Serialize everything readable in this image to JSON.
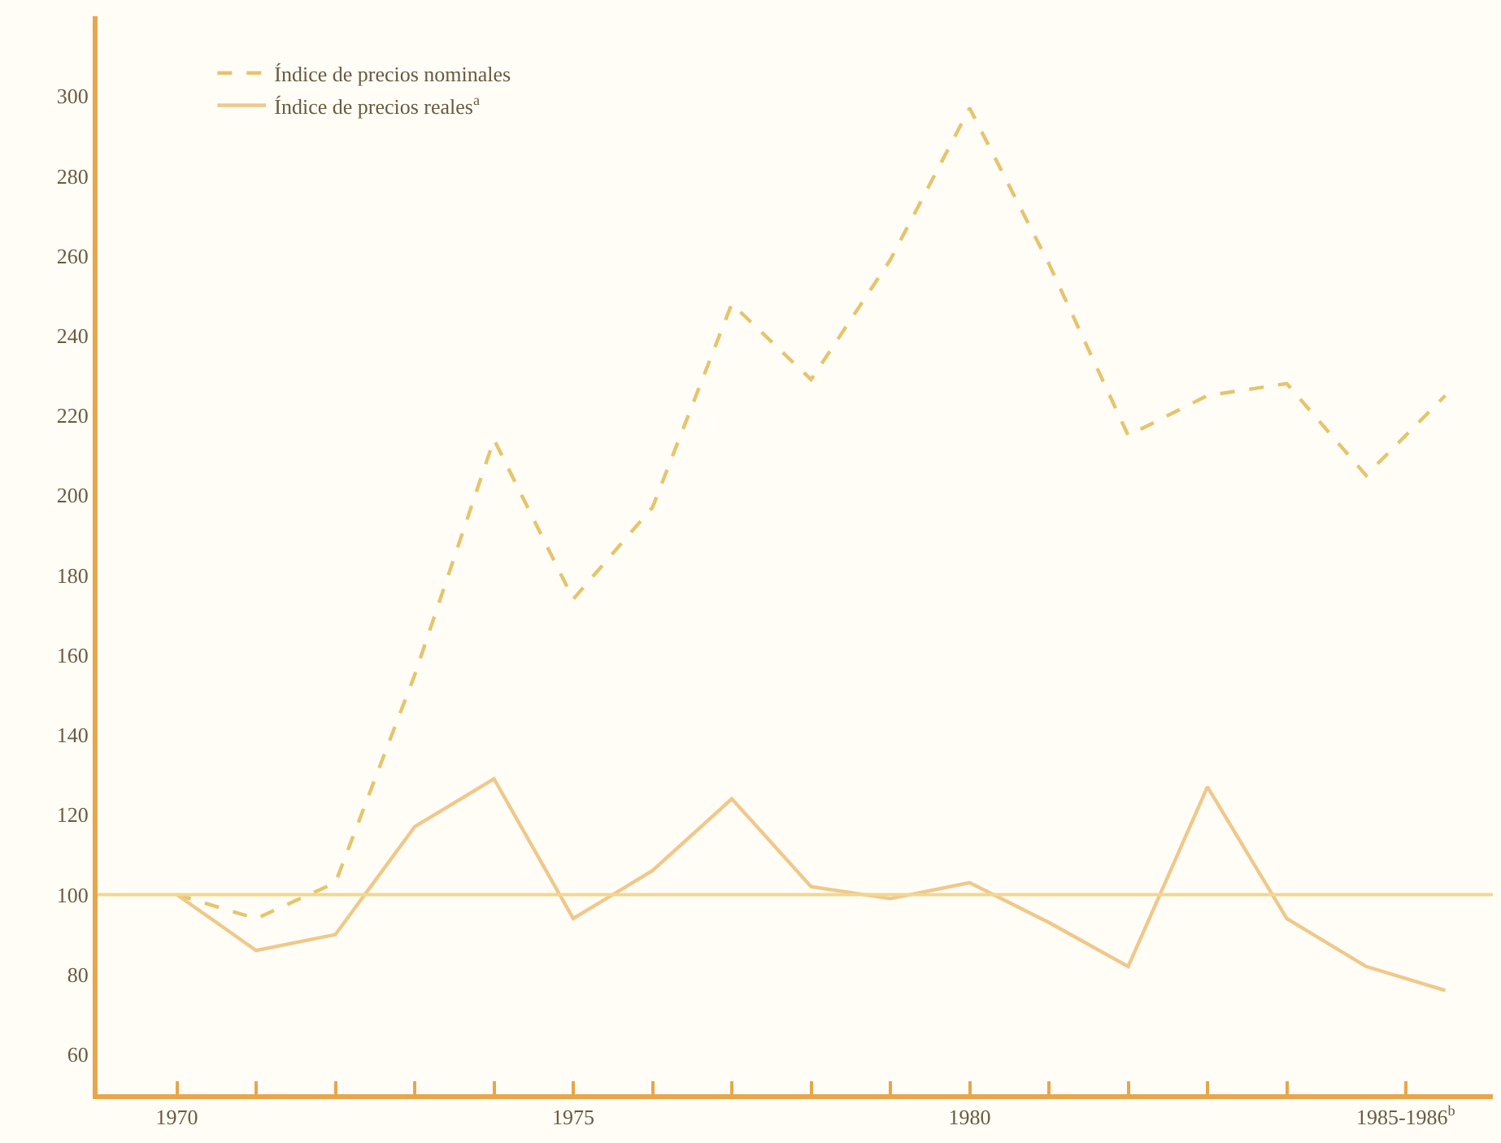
{
  "chart_data": {
    "type": "line",
    "x": [
      1970,
      1971,
      1972,
      1973,
      1974,
      1975,
      1976,
      1977,
      1978,
      1979,
      1980,
      1981,
      1982,
      1983,
      1984,
      1985,
      1986
    ],
    "series": [
      {
        "name": "Índice de precios nominales",
        "color": "#e6c46e",
        "line_style": "dashed",
        "values": [
          100,
          94,
          103,
          155,
          214,
          174,
          197,
          248,
          229,
          259,
          297,
          258,
          215,
          225,
          228,
          205,
          225
        ]
      },
      {
        "name": "Índice de precios reales$^{a}$",
        "color": "#f0c88c",
        "line_style": "solid",
        "values": [
          100,
          86,
          90,
          117,
          129,
          94,
          106,
          124,
          102,
          99,
          103,
          93,
          82,
          127,
          94,
          82,
          76
        ]
      }
    ],
    "xlim": [
      1969,
      1986.6
    ],
    "xticks": [
      1970,
      {
        "value": 1971,
        "label": null
      },
      {
        "value": 1972,
        "label": null
      },
      {
        "value": 1973,
        "label": null
      },
      {
        "value": 1974,
        "label": null
      },
      1975,
      {
        "value": 1976,
        "label": null
      },
      {
        "value": 1977,
        "label": null
      },
      {
        "value": 1978,
        "label": null
      },
      {
        "value": 1979,
        "label": null
      },
      1980,
      {
        "value": 1981,
        "label": null
      },
      {
        "value": 1982,
        "label": null
      },
      {
        "value": 1983,
        "label": null
      },
      {
        "value": 1984,
        "label": null
      },
      {
        "value": 1985.5,
        "label": "1985-1986$^{b}$"
      }
    ],
    "ylim": [
      50,
      320
    ],
    "yticks": [
      60,
      80,
      100,
      120,
      140,
      160,
      180,
      200,
      220,
      240,
      260,
      280,
      300
    ],
    "ref_lines": [
      {
        "axis": "y",
        "value": 100,
        "label": null,
        "color": "#f0d890"
      }
    ],
    "grid": false,
    "legend": "top left",
    "marker": "none"
  }
}
